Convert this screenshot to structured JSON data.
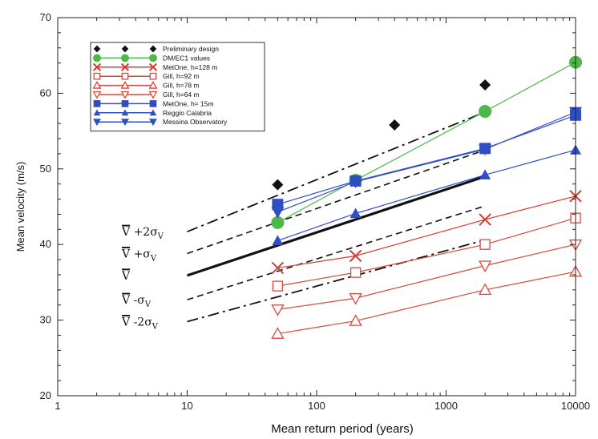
{
  "chart_data": {
    "type": "line",
    "xscale": "log",
    "xlim": [
      1,
      10000
    ],
    "ylim": [
      20,
      70
    ],
    "xlabel": "Mean return period (years)",
    "ylabel": "Mean velocity (m/s)",
    "xticks": [
      1,
      10,
      100,
      1000,
      10000
    ],
    "xtick_labels": [
      "1",
      "10",
      "100",
      "1000",
      "10000"
    ],
    "yticks": [
      20,
      30,
      40,
      50,
      60,
      70
    ],
    "ytick_labels": [
      "20",
      "30",
      "40",
      "50",
      "60",
      "70"
    ],
    "grid": false,
    "legend_position": "top-left",
    "series": [
      {
        "name": "Preliminary design",
        "color": "#111111",
        "marker": "diamond",
        "line": false,
        "points": [
          [
            50,
            47.9
          ],
          [
            400,
            55.8
          ],
          [
            2000,
            61.1
          ]
        ]
      },
      {
        "name": "DM/EC1 values",
        "color": "#4db84a",
        "marker": "circle",
        "line": true,
        "points": [
          [
            50,
            42.9
          ],
          [
            200,
            48.5
          ],
          [
            2000,
            57.6
          ],
          [
            10000,
            64.1
          ]
        ]
      },
      {
        "name": "MetOne, h=128 m",
        "color": "#d93a30",
        "marker": "x",
        "line": true,
        "points": [
          [
            50,
            36.9
          ],
          [
            200,
            38.5
          ],
          [
            2000,
            43.3
          ],
          [
            10000,
            46.4
          ]
        ]
      },
      {
        "name": "Gill, h=92 m",
        "color": "#d9483a",
        "marker": "square-open",
        "line": true,
        "points": [
          [
            50,
            34.5
          ],
          [
            200,
            36.3
          ],
          [
            2000,
            40.0
          ],
          [
            10000,
            43.5
          ]
        ]
      },
      {
        "name": "Gill, h=78 m",
        "color": "#d9483a",
        "marker": "triangle-up-open",
        "line": true,
        "points": [
          [
            50,
            28.2
          ],
          [
            200,
            29.9
          ],
          [
            2000,
            34.0
          ],
          [
            10000,
            36.4
          ]
        ]
      },
      {
        "name": "Gill, h=64 m",
        "color": "#d9483a",
        "marker": "triangle-down-open",
        "line": true,
        "points": [
          [
            50,
            31.4
          ],
          [
            200,
            32.9
          ],
          [
            2000,
            37.2
          ],
          [
            10000,
            40.0
          ]
        ]
      },
      {
        "name": "MetOne, h= 15m",
        "color": "#2f4ec4",
        "marker": "square",
        "line": true,
        "points": [
          [
            50,
            45.3
          ],
          [
            200,
            48.4
          ],
          [
            2000,
            52.7
          ],
          [
            10000,
            57.1
          ]
        ]
      },
      {
        "name": "Reggio Calabria",
        "color": "#2f4ec4",
        "marker": "triangle-up",
        "line": true,
        "points": [
          [
            50,
            40.5
          ],
          [
            200,
            44.1
          ],
          [
            2000,
            49.2
          ],
          [
            10000,
            52.5
          ]
        ]
      },
      {
        "name": "Messina Observatory",
        "color": "#2f4ec4",
        "marker": "triangle-down",
        "line": true,
        "points": [
          [
            50,
            44.3
          ],
          [
            200,
            48.3
          ],
          [
            2000,
            52.6
          ],
          [
            10000,
            57.5
          ]
        ]
      }
    ],
    "bands": [
      {
        "label_parts": [
          "V",
          " +2σ",
          "V"
        ],
        "style": "dashdot",
        "points": [
          [
            10,
            41.7
          ],
          [
            2000,
            57.5
          ]
        ]
      },
      {
        "label_parts": [
          "V",
          " +σ",
          "V"
        ],
        "style": "dashed",
        "points": [
          [
            10,
            38.8
          ],
          [
            2000,
            52.5
          ]
        ]
      },
      {
        "label_parts": [
          "V",
          "",
          ""
        ],
        "style": "solid-thick",
        "points": [
          [
            10,
            35.9
          ],
          [
            2000,
            49.0
          ]
        ]
      },
      {
        "label_parts": [
          "V",
          " -σ",
          "V"
        ],
        "style": "dashed",
        "points": [
          [
            10,
            32.7
          ],
          [
            2000,
            45.1
          ]
        ]
      },
      {
        "label_parts": [
          "V",
          " -2σ",
          "V"
        ],
        "style": "dashdot",
        "points": [
          [
            10,
            29.8
          ],
          [
            2000,
            40.6
          ]
        ]
      }
    ]
  }
}
